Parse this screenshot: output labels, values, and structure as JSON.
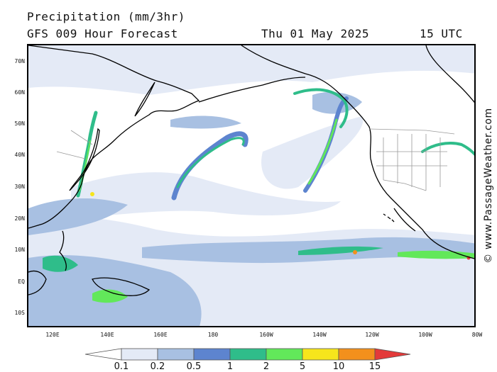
{
  "header": {
    "title": "Precipitation (mm/3hr)",
    "model": "GFS 009 Hour Forecast",
    "date": "Thu 01 May 2025",
    "time": "15 UTC"
  },
  "map": {
    "lat_labels": [
      "70N",
      "60N",
      "50N",
      "40N",
      "30N",
      "20N",
      "10N",
      "EQ",
      "10S"
    ],
    "lon_labels": [
      "120E",
      "140E",
      "160E",
      "180",
      "160W",
      "140W",
      "120W",
      "100W",
      "80W"
    ],
    "land_color": "#ffffff",
    "coast_color": "#000000",
    "border_color": "#9a9a9a"
  },
  "legend": {
    "tick_labels": [
      "0.1",
      "0.2",
      "0.5",
      "1",
      "2",
      "5",
      "10",
      "15"
    ],
    "colors": [
      "#ffffff",
      "#e4eaf6",
      "#a8c0e2",
      "#5d84cf",
      "#2fbd8a",
      "#62e85a",
      "#f6e51c",
      "#f3901c",
      "#e33a3a"
    ]
  },
  "copyright": "© www.PassageWeather.com"
}
